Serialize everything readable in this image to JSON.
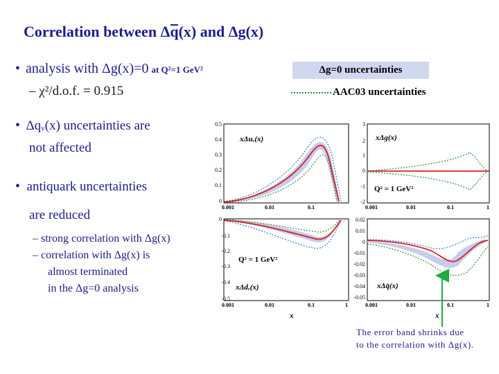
{
  "title": {
    "pre": "Correlation between ",
    "delta1": "Δ",
    "q": "q",
    "mid": "(x) and ",
    "delta2": "Δ",
    "post": "g(x)"
  },
  "bullets": [
    {
      "main": "analysis with Δg(x)=0",
      "small": "at Q²=1 GeV²",
      "sub": "– χ²/d.o.f. = 0.915"
    },
    {
      "main_line1": "Δqᵥ(x) uncertainties are",
      "main_line2": "not affected"
    },
    {
      "main_line1": "antiquark uncertainties",
      "main_line2": "are reduced",
      "subs": [
        "– strong correlation with Δg(x)",
        "– correlation with Δg(x) is",
        "almost terminated",
        "in the Δg=0 analysis"
      ]
    }
  ],
  "legend": {
    "band": "Δg=0 uncertainties",
    "dotted": "AAC03 uncertainties",
    "band_color": "#cfd8ee",
    "dotted_color": "#2e8b3a"
  },
  "panels": {
    "tl": {
      "label": "xΔuᵥ(x)",
      "yticks": [
        "0.5",
        "0.4",
        "0.3",
        "0.2",
        "0.1",
        "0"
      ]
    },
    "tr": {
      "label": "xΔg(x)",
      "q2": "Q² = 1 GeV²",
      "yticks": [
        "3",
        "2",
        "1",
        "0",
        "-1",
        "-2"
      ]
    },
    "bl": {
      "label": "xΔdᵥ(x)",
      "q2": "Q² = 1 GeV²",
      "yticks": [
        "0",
        "-0.1",
        "-0.2",
        "-0.3",
        "-0.4",
        "-0.5"
      ]
    },
    "br": {
      "label": "xΔq̄(x)",
      "yticks": [
        "0.02",
        "0.01",
        "0",
        "-0.01",
        "-0.02",
        "-0.03",
        "-0.04",
        "-0.05"
      ]
    },
    "xticks": [
      "0.001",
      "0.01",
      "0.1",
      "1"
    ],
    "xlabel": "x"
  },
  "note": {
    "line1": "The error band shrinks due",
    "line2": "to the correlation with Δg(x)."
  },
  "colors": {
    "title": "#1c1c8c",
    "central": "#d42020",
    "band": "#9999dd",
    "dotted": "#2e8b3a",
    "blue_dotted": "#2a7fd4",
    "arrow": "#22aa44"
  }
}
